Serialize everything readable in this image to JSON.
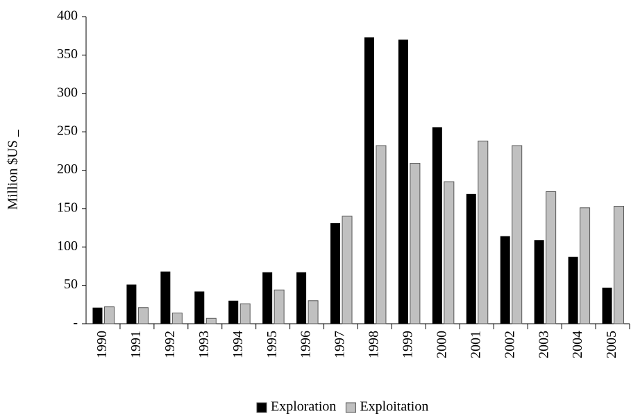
{
  "chart_data": {
    "type": "bar",
    "y_label": "Million $US _",
    "categories": [
      "1990",
      "1991",
      "1992",
      "1993",
      "1994",
      "1995",
      "1996",
      "1997",
      "1998",
      "1999",
      "2000",
      "2001",
      "2002",
      "2003",
      "2004",
      "2005"
    ],
    "series": [
      {
        "name": "Exploration",
        "color": "#000000",
        "values": [
          21,
          51,
          68,
          42,
          30,
          67,
          67,
          131,
          373,
          370,
          256,
          169,
          114,
          109,
          87,
          47
        ]
      },
      {
        "name": "Exploitation",
        "color": "#c0c0c0",
        "values": [
          22,
          21,
          14,
          7,
          26,
          44,
          30,
          140,
          232,
          209,
          185,
          238,
          232,
          172,
          151,
          153
        ]
      }
    ],
    "ylim": [
      0,
      400
    ],
    "yticks": [
      {
        "value": 0,
        "label": "-"
      },
      50,
      100,
      150,
      200,
      250,
      300,
      350,
      400
    ],
    "grid": false,
    "legend": "bottom"
  }
}
